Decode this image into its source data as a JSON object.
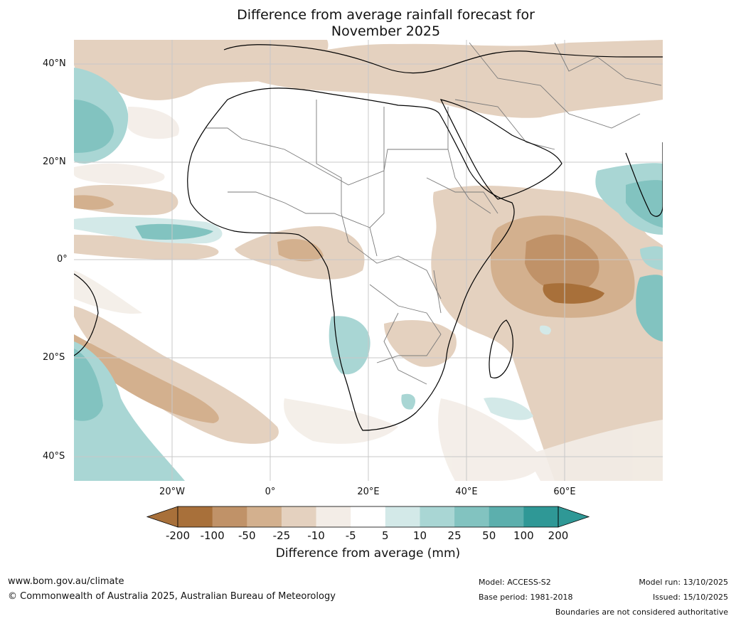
{
  "title": {
    "line1": "Difference from average rainfall forecast for",
    "line2": "November 2025"
  },
  "axes": {
    "latitudes": [
      "40°N",
      "20°N",
      "0°",
      "20°S",
      "40°S"
    ],
    "longitudes": [
      "20°W",
      "0°",
      "20°E",
      "40°E",
      "60°E"
    ]
  },
  "colorbar": {
    "title": "Difference from average (mm)",
    "ticks": [
      "-200",
      "-100",
      "-50",
      "-25",
      "-10",
      "-5",
      "5",
      "10",
      "25",
      "50",
      "100",
      "200"
    ],
    "colors": [
      "#a8703a",
      "#c09268",
      "#d3b08e",
      "#e4d1bf",
      "#f3ede7",
      "#ffffff",
      "#d3e9e8",
      "#a9d6d4",
      "#82c3c0",
      "#5cafad",
      "#2f9896"
    ],
    "low_extend_color": "#a8703a",
    "high_extend_color": "#2f9896"
  },
  "footer": {
    "url": "www.bom.gov.au/climate",
    "copyright": "© Commonwealth of Australia 2025, Australian Bureau of Meteorology",
    "model": "Model: ACCESS-S2",
    "base_period": "Base period: 1981-2018",
    "model_run": "Model run: 13/10/2025",
    "issued": "Issued: 15/10/2025",
    "disclaimer": "Boundaries are not considered authoritative"
  },
  "map_colors": {
    "ocean_background": "#ffffff",
    "grid": "#c8c8c8",
    "coast": "#000000",
    "borders": "#7a7a7a"
  }
}
